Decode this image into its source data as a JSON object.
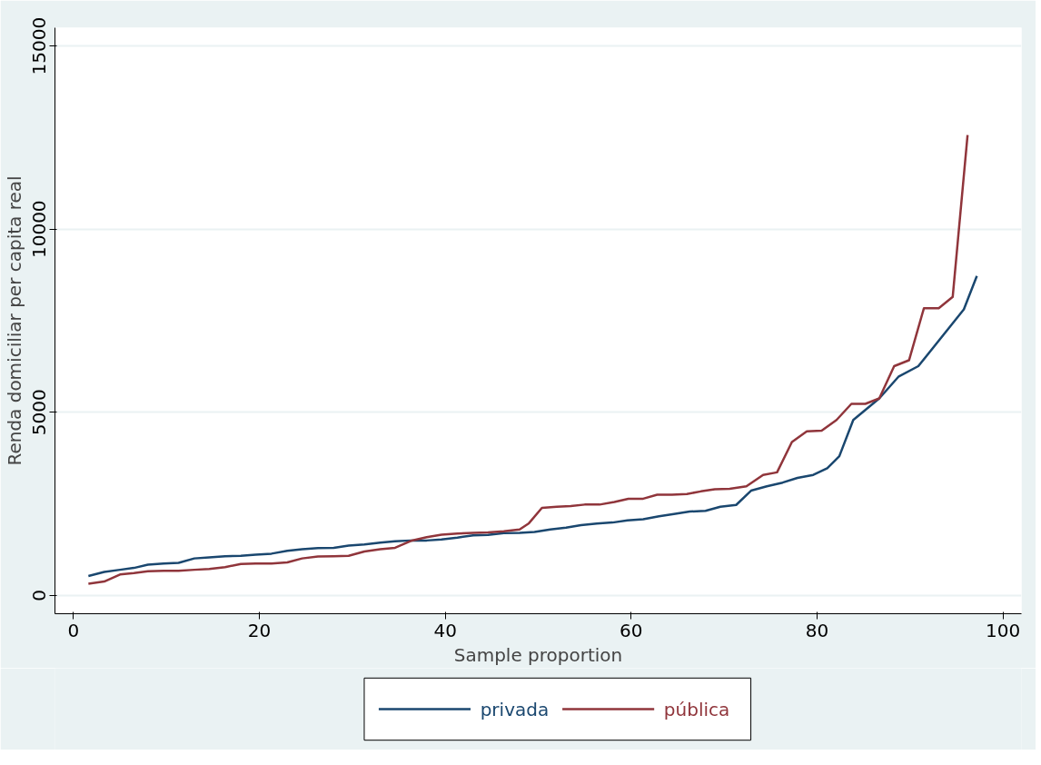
{
  "chart_data": {
    "type": "line",
    "xlabel": "Sample proportion",
    "ylabel": "Renda domiciliar per capita real",
    "xlim": [
      -2,
      102
    ],
    "ylim": [
      -500,
      15500
    ],
    "xticks": [
      0,
      20,
      40,
      60,
      80,
      100
    ],
    "yticks": [
      0,
      5000,
      10000,
      15000
    ],
    "grid": "y",
    "legend": "bottom",
    "line_style": "solid",
    "marker": "none",
    "series": [
      {
        "name": "privada",
        "color": "#1a476f",
        "x": [
          1.6,
          3.3,
          5,
          6.5,
          8,
          9.7,
          11.3,
          13,
          14.6,
          16.3,
          18,
          19.6,
          21.3,
          23,
          24.6,
          26.3,
          28,
          29.6,
          31.3,
          33,
          34.6,
          36.3,
          38,
          39.6,
          41.3,
          43,
          44.6,
          46.3,
          48,
          49.6,
          51.3,
          53,
          54.6,
          56.3,
          58,
          59.6,
          61.3,
          63,
          64.6,
          66.3,
          68,
          69.6,
          71.3,
          72.9,
          74.6,
          76.3,
          77.9,
          79.6,
          81.1,
          82.4,
          83.9,
          86.7,
          88.8,
          90.9,
          95.8,
          97.2
        ],
        "values": [
          530,
          640,
          700,
          750,
          840,
          870,
          890,
          1010,
          1040,
          1070,
          1080,
          1110,
          1140,
          1220,
          1260,
          1290,
          1300,
          1360,
          1390,
          1440,
          1480,
          1500,
          1500,
          1530,
          1580,
          1640,
          1650,
          1700,
          1710,
          1730,
          1800,
          1850,
          1920,
          1960,
          1990,
          2050,
          2080,
          2160,
          2220,
          2290,
          2310,
          2420,
          2470,
          2860,
          2980,
          3080,
          3210,
          3290,
          3470,
          3800,
          4790,
          5380,
          5980,
          6260,
          7810,
          8720
        ]
      },
      {
        "name": "pública",
        "color": "#90353b",
        "x": [
          1.6,
          3.3,
          5,
          6.5,
          8,
          9.7,
          11.3,
          13,
          14.6,
          16.3,
          18,
          19.6,
          21.3,
          23,
          24.6,
          26.3,
          28,
          29.6,
          31.3,
          33,
          34.6,
          36.3,
          38,
          39.6,
          41.3,
          43,
          44.6,
          46.3,
          48,
          49,
          50.4,
          52,
          53.5,
          55,
          56.6,
          58.2,
          59.7,
          61.3,
          62.8,
          64.4,
          66,
          67.5,
          69,
          70.6,
          72.4,
          74.2,
          75.7,
          77.3,
          78.9,
          80.5,
          82.1,
          83.7,
          85.2,
          86.7,
          88.3,
          89.9,
          91.5,
          93.1,
          94.6,
          96.2
        ],
        "values": [
          320,
          380,
          570,
          610,
          660,
          670,
          670,
          700,
          720,
          770,
          860,
          870,
          870,
          900,
          1010,
          1060,
          1070,
          1080,
          1200,
          1260,
          1300,
          1490,
          1590,
          1660,
          1690,
          1710,
          1720,
          1750,
          1800,
          1970,
          2390,
          2420,
          2440,
          2480,
          2480,
          2550,
          2640,
          2640,
          2750,
          2750,
          2770,
          2840,
          2900,
          2910,
          2980,
          3290,
          3360,
          4190,
          4480,
          4500,
          4790,
          5230,
          5230,
          5380,
          6260,
          6420,
          7840,
          7840,
          8150,
          12570
        ]
      }
    ]
  }
}
